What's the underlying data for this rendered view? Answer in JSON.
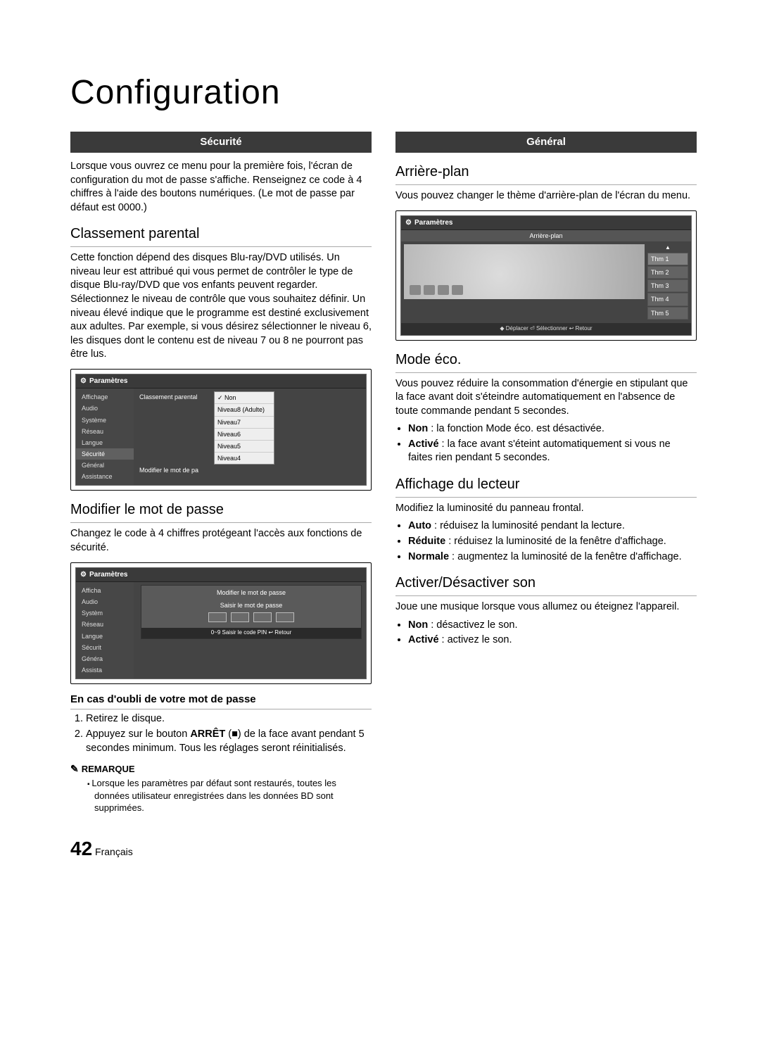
{
  "page": {
    "title": "Configuration",
    "number": "42",
    "lang": "Français"
  },
  "left": {
    "banner": "Sécurité",
    "intro": "Lorsque vous ouvrez ce menu pour la première fois, l'écran de configuration du mot de passe s'affiche. Renseignez ce code à 4 chiffres à l'aide des boutons numériques. (Le mot de passe par défaut est 0000.)",
    "parental": {
      "title": "Classement parental",
      "body": "Cette fonction dépend des disques Blu-ray/DVD utilisés. Un niveau leur est attribué qui vous permet de contrôler le type de disque Blu-ray/DVD que vos enfants peuvent regarder. Sélectionnez le niveau de contrôle que vous souhaitez définir. Un niveau élevé indique que le programme est destiné exclusivement aux adultes. Par exemple, si vous désirez sélectionner le niveau 6, les disques dont le contenu est de niveau 7 ou 8 ne pourront pas être lus."
    },
    "mock1": {
      "title": "Paramètres",
      "side": [
        "Affichage",
        "Audio",
        "Système",
        "Réseau",
        "Langue",
        "Sécurité",
        "Général",
        "Assistance"
      ],
      "side_active_index": 5,
      "rows": [
        "Classement parental",
        "Modifier le mot de pa"
      ],
      "dropdown": [
        "Non",
        "Niveau8 (Adulte)",
        "Niveau7",
        "Niveau6",
        "Niveau5",
        "Niveau4"
      ],
      "dropdown_selected_index": 0
    },
    "password": {
      "title": "Modifier le mot de passe",
      "body": "Changez le code à 4 chiffres protégeant l'accès aux fonctions de sécurité."
    },
    "mock2": {
      "title": "Paramètres",
      "side": [
        "Afficha",
        "Audio",
        "Systèm",
        "Réseau",
        "Langue",
        "Sécurit",
        "Généra",
        "Assista"
      ],
      "overlay_title": "Modifier le mot de passe",
      "overlay_sub": "Saisir le mot de passe",
      "footer": "0~9  Saisir le code PIN   ↩ Retour"
    },
    "forgot": {
      "title": "En cas d'oubli de votre mot de passe",
      "steps": [
        "Retirez le disque.",
        "Appuyez sur le bouton ARRÊT (■) de la face avant pendant 5 secondes minimum. Tous les réglages seront réinitialisés."
      ],
      "step2_pre": "Appuyez sur le bouton ",
      "step2_bold": "ARRÊT",
      "step2_post": " (■) de la face avant pendant 5 secondes minimum. Tous les réglages seront réinitialisés."
    },
    "note": {
      "head": "REMARQUE",
      "body": "Lorsque les paramètres par défaut sont restaurés, toutes les données utilisateur enregistrées dans les données BD sont supprimées."
    }
  },
  "right": {
    "banner": "Général",
    "bg": {
      "title": "Arrière-plan",
      "body": "Vous pouvez changer le thème d'arrière-plan de l'écran du menu."
    },
    "mock3": {
      "title": "Paramètres",
      "tab": "Arrière-plan",
      "themes": [
        "Thm 1",
        "Thm 2",
        "Thm 3",
        "Thm 4",
        "Thm 5"
      ],
      "selected_index": 0,
      "footer": "◆ Déplacer  ⏎ Sélectionner  ↩ Retour"
    },
    "eco": {
      "title": "Mode éco.",
      "body": "Vous pouvez réduire la consommation d'énergie en stipulant que la face avant doit s'éteindre automatiquement en l'absence de toute commande pendant 5 secondes.",
      "items": [
        {
          "b": "Non",
          "t": " : la fonction Mode éco. est désactivée."
        },
        {
          "b": "Activé",
          "t": " : la face avant s'éteint automatiquement si vous ne faites rien pendant 5 secondes."
        }
      ]
    },
    "disp": {
      "title": "Affichage du lecteur",
      "body": "Modifiez la luminosité du panneau frontal.",
      "items": [
        {
          "b": "Auto",
          "t": " : réduisez la luminosité pendant la lecture."
        },
        {
          "b": "Réduite",
          "t": " : réduisez la luminosité de la fenêtre d'affichage."
        },
        {
          "b": "Normale",
          "t": " : augmentez la luminosité de la fenêtre d'affichage."
        }
      ]
    },
    "sound": {
      "title": "Activer/Désactiver son",
      "body": "Joue une musique lorsque vous allumez ou éteignez l'appareil.",
      "items": [
        {
          "b": "Non",
          "t": " : désactivez le son."
        },
        {
          "b": "Activé",
          "t": " : activez le son."
        }
      ]
    }
  }
}
